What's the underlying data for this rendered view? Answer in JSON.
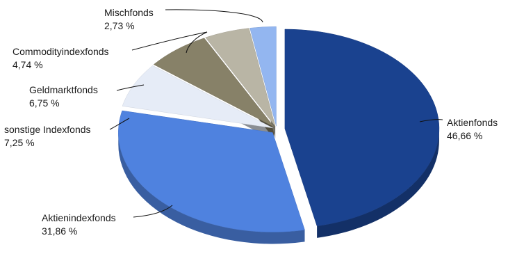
{
  "chart_data": {
    "type": "pie",
    "style": "3d-exploded",
    "title": "",
    "slices": [
      {
        "key": "aktienfonds",
        "name": "Aktienfonds",
        "value": 46.66,
        "label": "46,66 %",
        "color": "#1a428f"
      },
      {
        "key": "aktienindexfonds",
        "name": "Aktienindexfonds",
        "value": 31.86,
        "label": "31,86 %",
        "color": "#4f82df"
      },
      {
        "key": "sonstige-indexfonds",
        "name": "sonstige Indexfonds",
        "value": 7.25,
        "label": "7,25 %",
        "color": "#e6ecf7"
      },
      {
        "key": "geldmarktfonds",
        "name": "Geldmarktfonds",
        "value": 6.75,
        "label": "6,75 %",
        "color": "#878168"
      },
      {
        "key": "commodityindexfonds",
        "name": "Commodityindexfonds",
        "value": 4.74,
        "label": "4,74 %",
        "color": "#b9b5a5"
      },
      {
        "key": "mischfonds",
        "name": "Mischfonds",
        "value": 2.73,
        "label": "2,73 %",
        "color": "#93b6f0"
      }
    ]
  }
}
